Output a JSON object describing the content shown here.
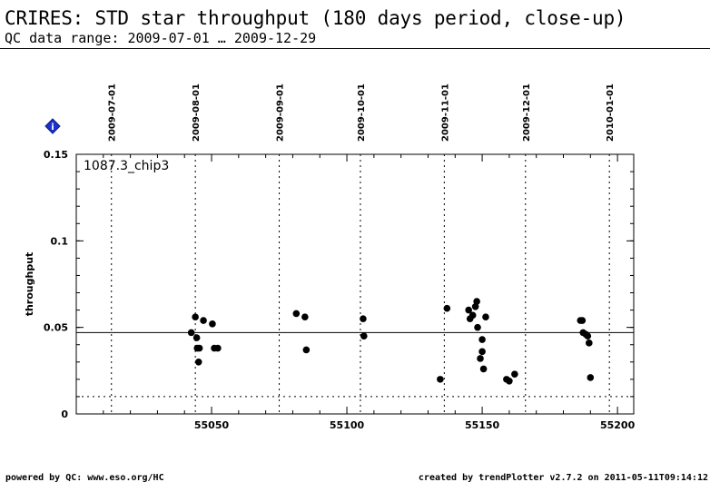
{
  "header": {
    "title": "CRIRES: STD star throughput (180 days period, close-up)",
    "subtitle": "QC data range: 2009-07-01 … 2009-12-29"
  },
  "footer": {
    "left": "powered by QC: www.eso.org/HC",
    "right": "created by trendPlotter v2.7.2 on 2011-05-11T09:14:12"
  },
  "info_icon": {
    "icon": "info-diamond-icon",
    "label": "i",
    "color": "#1a33cc"
  },
  "chart_data": {
    "type": "scatter",
    "ylabel": "throughput",
    "xlabel": "",
    "panel_label": "1087.3_chip3",
    "xlim": [
      55000,
      55206
    ],
    "ylim": [
      0,
      0.15
    ],
    "x_ticks": [
      55050,
      55100,
      55150,
      55200
    ],
    "y_ticks": [
      0,
      0.05,
      0.1,
      0.15
    ],
    "y_tick_labels": [
      "0",
      "0.05",
      "0.1",
      "0.15"
    ],
    "date_markers": [
      {
        "x": 55013,
        "label": "2009-07-01"
      },
      {
        "x": 55044,
        "label": "2009-08-01"
      },
      {
        "x": 55075,
        "label": "2009-09-01"
      },
      {
        "x": 55105,
        "label": "2009-10-01"
      },
      {
        "x": 55136,
        "label": "2009-11-01"
      },
      {
        "x": 55166,
        "label": "2009-12-01"
      },
      {
        "x": 55197,
        "label": "2010-01-01"
      }
    ],
    "reference_line": 0.047,
    "lower_limit": 0.01,
    "point_color": "#000000",
    "points": [
      {
        "x": 55042.5,
        "y": 0.047
      },
      {
        "x": 55044.0,
        "y": 0.056
      },
      {
        "x": 55044.5,
        "y": 0.044
      },
      {
        "x": 55044.7,
        "y": 0.038
      },
      {
        "x": 55045.2,
        "y": 0.03
      },
      {
        "x": 55045.5,
        "y": 0.038
      },
      {
        "x": 55047.0,
        "y": 0.054
      },
      {
        "x": 55050.3,
        "y": 0.052
      },
      {
        "x": 55051.0,
        "y": 0.038
      },
      {
        "x": 55052.3,
        "y": 0.038
      },
      {
        "x": 55081.3,
        "y": 0.058
      },
      {
        "x": 55084.5,
        "y": 0.056
      },
      {
        "x": 55085.0,
        "y": 0.037
      },
      {
        "x": 55106.0,
        "y": 0.055
      },
      {
        "x": 55106.3,
        "y": 0.045
      },
      {
        "x": 55134.5,
        "y": 0.02
      },
      {
        "x": 55137.0,
        "y": 0.061
      },
      {
        "x": 55145.0,
        "y": 0.06
      },
      {
        "x": 55145.5,
        "y": 0.055
      },
      {
        "x": 55146.5,
        "y": 0.057
      },
      {
        "x": 55147.5,
        "y": 0.062
      },
      {
        "x": 55148.0,
        "y": 0.065
      },
      {
        "x": 55148.3,
        "y": 0.05
      },
      {
        "x": 55149.3,
        "y": 0.032
      },
      {
        "x": 55150.0,
        "y": 0.043
      },
      {
        "x": 55150.0,
        "y": 0.036
      },
      {
        "x": 55150.5,
        "y": 0.026
      },
      {
        "x": 55151.3,
        "y": 0.056
      },
      {
        "x": 55159.0,
        "y": 0.02
      },
      {
        "x": 55160.0,
        "y": 0.019
      },
      {
        "x": 55162.0,
        "y": 0.023
      },
      {
        "x": 55186.3,
        "y": 0.054
      },
      {
        "x": 55187.0,
        "y": 0.054
      },
      {
        "x": 55187.3,
        "y": 0.047
      },
      {
        "x": 55188.3,
        "y": 0.046
      },
      {
        "x": 55189.0,
        "y": 0.045
      },
      {
        "x": 55189.5,
        "y": 0.041
      },
      {
        "x": 55190.0,
        "y": 0.021
      }
    ]
  }
}
